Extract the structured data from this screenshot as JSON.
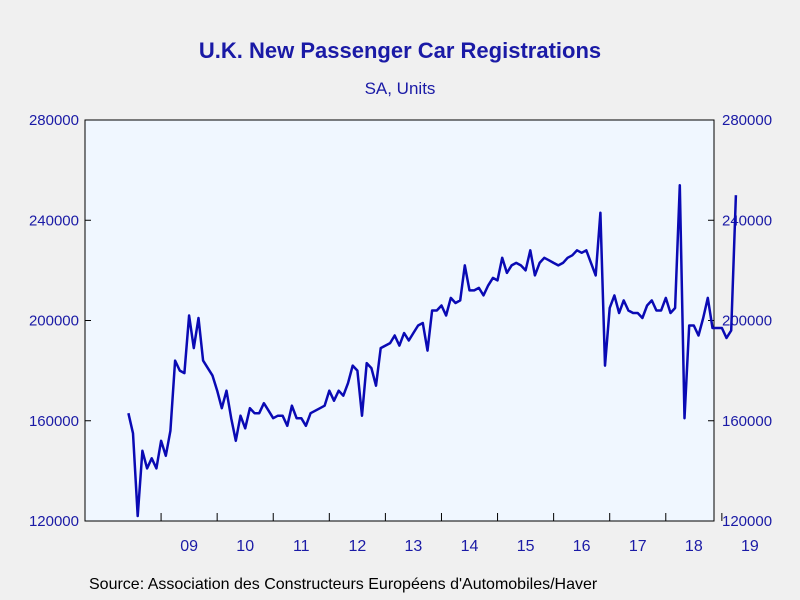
{
  "chart_data": {
    "type": "line",
    "title": "U.K. New Passenger Car Registrations",
    "subtitle": "SA, Units",
    "source": "Source:  Association des Constructeurs Européens d'Automobiles/Haver",
    "ylim": [
      120000,
      280000
    ],
    "y_ticks": [
      120000,
      160000,
      200000,
      240000,
      280000
    ],
    "y_tick_labels": [
      "120000",
      "160000",
      "200000",
      "240000",
      "280000"
    ],
    "x_tick_labels": [
      "09",
      "10",
      "11",
      "12",
      "13",
      "14",
      "15",
      "16",
      "17",
      "18",
      "19"
    ],
    "grid": false,
    "line_color": "#0a0ab4",
    "plot_background": "#f0f7ff",
    "series": [
      {
        "start": "2008-06",
        "frequency": "monthly",
        "values": [
          163000,
          155000,
          122000,
          148000,
          141000,
          145000,
          141000,
          152000,
          146000,
          156000,
          184000,
          180000,
          179000,
          202000,
          189000,
          201000,
          184000,
          181000,
          178000,
          172000,
          165000,
          172000,
          161000,
          152000,
          162000,
          157000,
          165000,
          163000,
          163000,
          167000,
          164000,
          161000,
          162000,
          162000,
          158000,
          166000,
          161000,
          161000,
          158000,
          163000,
          164000,
          165000,
          166000,
          172000,
          168000,
          172000,
          170000,
          175000,
          182000,
          180000,
          162000,
          183000,
          181000,
          174000,
          189000,
          190000,
          191000,
          194000,
          190000,
          195000,
          192000,
          195000,
          198000,
          199000,
          188000,
          204000,
          204000,
          206000,
          202000,
          209000,
          207000,
          208000,
          222000,
          212000,
          212000,
          213000,
          210000,
          214000,
          217000,
          216000,
          225000,
          219000,
          222000,
          223000,
          222000,
          220000,
          228000,
          218000,
          223000,
          225000,
          224000,
          223000,
          222000,
          223000,
          225000,
          226000,
          228000,
          227000,
          228000,
          223000,
          218000,
          243000,
          182000,
          205000,
          210000,
          203000,
          208000,
          204000,
          203000,
          203000,
          201000,
          206000,
          208000,
          204000,
          204000,
          209000,
          203000,
          205000,
          254000,
          161000,
          198000,
          198000,
          194000,
          201000,
          209000,
          197000,
          197000,
          197000,
          193000,
          196000,
          250000
        ]
      }
    ]
  }
}
